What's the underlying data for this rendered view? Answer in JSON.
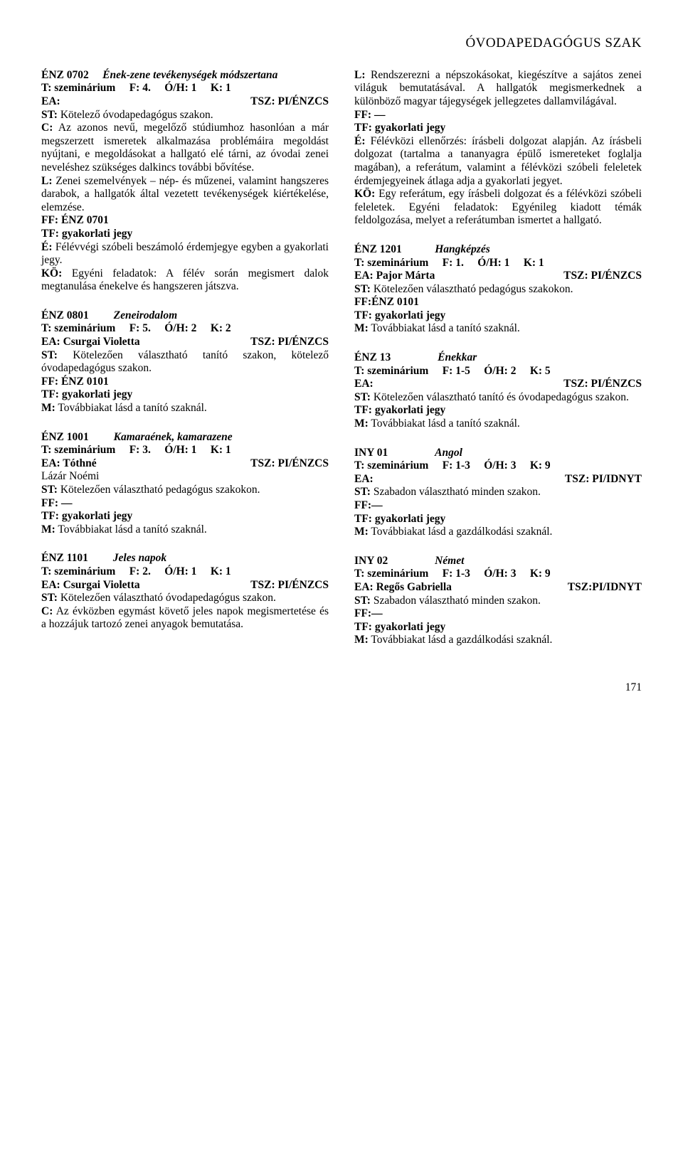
{
  "header": "ÓVODAPEDAGÓGUS SZAK",
  "page_number": "171",
  "left": {
    "e1": {
      "code": "ÉNZ  0702",
      "title": "Ének-zene tevékenységek módszertana",
      "t": "T: szeminárium",
      "f": "F: 4.",
      "oh": "Ó/H: 1",
      "k": "K: 1",
      "ea": "EA:",
      "tsz": "TSZ: PI/ÉNZCS",
      "st": "ST: Kötelező óvodapedagógus szakon.",
      "c": "C: Az azonos nevű, megelőző stúdiumhoz hasonlóan a már megszerzett ismeretek alkalmazása problémáira megoldást nyújtani, e megoldásokat a hallgató elé tárni, az óvodai zenei neveléshez szükséges dalkincs további bővítése.",
      "l": "L: Zenei szemelvények – nép- és műzenei, valamint hangszeres darabok, a hallgatók által vezetett tevékenységek kiértékelése, elemzése.",
      "ff": "FF: ÉNZ  0701",
      "tf": "TF: gyakorlati jegy",
      "e": "É: Félévvégi szóbeli beszámoló érdemjegye egyben a gyakorlati jegy.",
      "ko": "KÖ: Egyéni feladatok: A félév során megismert dalok megtanulása énekelve és hangszeren játszva."
    },
    "e2": {
      "code": "ÉNZ  0801",
      "title": "Zeneirodalom",
      "t": "T: szeminárium",
      "f": "F: 5.",
      "oh": "Ó/H: 2",
      "k": "K: 2",
      "ea": "EA: Csurgai Violetta",
      "tsz": "TSZ: PI/ÉNZCS",
      "st": "ST: Kötelezően választható tanító szakon, kötelező óvodapedagógus szakon.",
      "ff": "FF: ÉNZ  0101",
      "tf": "TF: gyakorlati jegy",
      "m": "M: Továbbiakat lásd a tanító szaknál."
    },
    "e3": {
      "code": "ÉNZ  1001",
      "title": "Kamaraének, kamarazene",
      "t": "T: szeminárium",
      "f": "F: 3.",
      "oh": "Ó/H: 1",
      "k": "K: 1",
      "ea": "EA: Tóthné",
      "tsz": "TSZ: PI/ÉNZCS",
      "ea2": "Lázár Noémi",
      "st": "ST: Kötelezően választható pedagógus szakokon.",
      "ff": "FF: —",
      "tf": "TF: gyakorlati jegy",
      "m": "M: Továbbiakat lásd a tanító szaknál."
    },
    "e4": {
      "code": "ÉNZ  1101",
      "title": "Jeles napok",
      "t": "T: szeminárium",
      "f": "F: 2.",
      "oh": "Ó/H: 1",
      "k": "K: 1",
      "ea": "EA: Csurgai Violetta",
      "tsz": "TSZ: PI/ÉNZCS",
      "st": "ST: Kötelezően választható óvodapedagógus szakon.",
      "c": "C: Az évközben egymást követő jeles napok megismertetése és a hozzájuk tartozó zenei anyagok bemutatása."
    }
  },
  "right": {
    "cont": {
      "l": "L: Rendszerezni a népszokásokat, kiegészítve a sajátos zenei világuk bemutatásával. A hallgatók megismerkednek a különböző magyar tájegységek jellegzetes dallamvilágával.",
      "ff": "FF: —",
      "tf": "TF: gyakorlati jegy",
      "e": "É: Félévközi ellenőrzés: írásbeli dolgozat alapján. Az írásbeli dolgozat (tartalma a tananyagra épülő ismereteket foglalja magában), a referátum, valamint a félévközi szóbeli feleletek érdemjegyeinek átlaga adja a gyakorlati jegyet.",
      "ko": "KÖ: Egy referátum, egy írásbeli dolgozat és a félévközi szóbeli feleletek. Egyéni feladatok: Egyénileg kiadott témák feldolgozása, melyet a referátumban ismertet a hallgató."
    },
    "e1": {
      "code": "ÉNZ  1201",
      "title": "Hangképzés",
      "t": "T: szeminárium",
      "f": "F: 1.",
      "oh": "Ó/H: 1",
      "k": "K: 1",
      "ea": "EA: Pajor Márta",
      "tsz": "TSZ: PI/ÉNZCS",
      "st": "ST: Kötelezően választható pedagógus szakokon.",
      "ff": "FF:ÉNZ  0101",
      "tf": "TF: gyakorlati jegy",
      "m": "M: Továbbiakat lásd a tanító szaknál."
    },
    "e2": {
      "code": "ÉNZ  13",
      "title": "Énekkar",
      "t": "T: szeminárium",
      "f": "F: 1-5",
      "oh": "Ó/H: 2",
      "k": "K: 5",
      "ea": "EA:",
      "tsz": "TSZ: PI/ÉNZCS",
      "st": "ST: Kötelezően választható tanító és óvodapedagógus szakon.",
      "tf": "TF: gyakorlati jegy",
      "m": "M: Továbbiakat lásd a tanító szaknál."
    },
    "e3": {
      "code": "INY  01",
      "title": "Angol",
      "t": "T: szeminárium",
      "f": "F: 1-3",
      "oh": "Ó/H: 3",
      "k": "K: 9",
      "ea": "EA:",
      "tsz": "TSZ: PI/IDNYT",
      "st": "ST: Szabadon választható minden szakon.",
      "ff": "FF:—",
      "tf": "TF: gyakorlati jegy",
      "m": "M: Továbbiakat lásd a gazdálkodási szaknál."
    },
    "e4": {
      "code": "INY  02",
      "title": "Német",
      "t": "T: szeminárium",
      "f": "F: 1-3",
      "oh": "Ó/H: 3",
      "k": "K: 9",
      "ea": "EA: Regős Gabriella",
      "tsz": "TSZ:PI/IDNYT",
      "st": "ST: Szabadon választható minden szakon.",
      "ff": "FF:—",
      "tf": "TF: gyakorlati jegy",
      "m": "M: Továbbiakat lásd a gazdálkodási szaknál."
    }
  }
}
